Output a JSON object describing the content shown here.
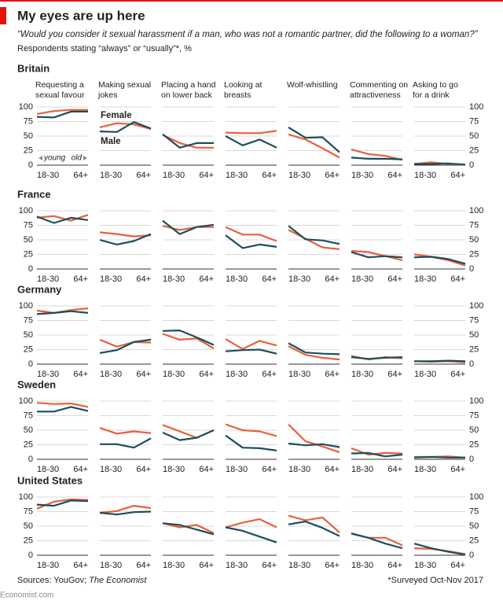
{
  "header": {
    "title": "My eyes are up here",
    "subtitle": "“Would you consider it sexual harassment if a man, who was not a romantic partner, did the following to a woman?”",
    "note": "Respondents stating “always” or “usually”*, %"
  },
  "chart_data": {
    "type": "line",
    "questions": [
      "Requesting a sexual favour",
      "Making sexual jokes",
      "Placing a hand on lower back",
      "Looking at breasts",
      "Wolf-whistling",
      "Commenting on attractiveness",
      "Asking to go for a drink"
    ],
    "categories": [
      "18-30",
      null,
      null,
      "64+"
    ],
    "ylim": [
      0,
      100
    ],
    "yticks": [
      0,
      25,
      50,
      75,
      100
    ],
    "grid": true,
    "series": [
      {
        "name": "Female",
        "color": "#e8603c"
      },
      {
        "name": "Male",
        "color": "#1b4f5e"
      }
    ],
    "annotations": [
      "young",
      "old"
    ],
    "countries": [
      {
        "name": "Britain",
        "values": [
          [
            [
              88,
              93,
              95,
              95
            ],
            [
              83,
              82,
              92,
              92
            ]
          ],
          [
            [
              65,
              72,
              70,
              62
            ],
            [
              58,
              57,
              74,
              63
            ]
          ],
          [
            [
              52,
              38,
              30,
              30
            ],
            [
              53,
              30,
              38,
              38
            ]
          ],
          [
            [
              56,
              55,
              55,
              59
            ],
            [
              50,
              34,
              44,
              30
            ]
          ],
          [
            [
              53,
              44,
              29,
              13
            ],
            [
              65,
              47,
              48,
              22
            ]
          ],
          [
            [
              27,
              19,
              16,
              9
            ],
            [
              13,
              11,
              11,
              10
            ]
          ],
          [
            [
              2,
              5,
              2,
              1
            ],
            [
              2,
              2,
              3,
              1
            ]
          ]
        ]
      },
      {
        "name": "France",
        "values": [
          [
            [
              88,
              91,
              83,
              93
            ],
            [
              90,
              79,
              88,
              84
            ]
          ],
          [
            [
              63,
              60,
              56,
              58
            ],
            [
              50,
              42,
              48,
              60
            ]
          ],
          [
            [
              74,
              67,
              72,
              72
            ],
            [
              83,
              60,
              72,
              76
            ]
          ],
          [
            [
              72,
              59,
              59,
              48
            ],
            [
              58,
              36,
              42,
              38
            ]
          ],
          [
            [
              67,
              52,
              37,
              34
            ],
            [
              74,
              51,
              49,
              43
            ]
          ],
          [
            [
              31,
              29,
              22,
              15
            ],
            [
              29,
              20,
              22,
              20
            ]
          ],
          [
            [
              25,
              21,
              15,
              6
            ],
            [
              20,
              21,
              17,
              9
            ]
          ]
        ]
      },
      {
        "name": "Germany",
        "values": [
          [
            [
              92,
              88,
              93,
              96
            ],
            [
              86,
              88,
              91,
              88
            ]
          ],
          [
            [
              42,
              30,
              38,
              37
            ],
            [
              19,
              24,
              38,
              42
            ]
          ],
          [
            [
              52,
              42,
              44,
              27
            ],
            [
              57,
              58,
              46,
              33
            ]
          ],
          [
            [
              43,
              26,
              40,
              32
            ],
            [
              22,
              24,
              25,
              18
            ]
          ],
          [
            [
              31,
              16,
              11,
              8
            ],
            [
              36,
              20,
              18,
              17
            ]
          ],
          [
            [
              14,
              8,
              12,
              10
            ],
            [
              12,
              9,
              11,
              12
            ]
          ],
          [
            [
              5,
              4,
              5,
              3
            ],
            [
              5,
              5,
              6,
              5
            ]
          ]
        ]
      },
      {
        "name": "Sweden",
        "values": [
          [
            [
              97,
              95,
              96,
              90
            ],
            [
              82,
              82,
              90,
              83
            ]
          ],
          [
            [
              54,
              44,
              48,
              45
            ],
            [
              26,
              26,
              20,
              36
            ]
          ],
          [
            [
              59,
              48,
              37,
              50
            ],
            [
              46,
              33,
              37,
              50
            ]
          ],
          [
            [
              60,
              50,
              48,
              40
            ],
            [
              41,
              20,
              19,
              15
            ]
          ],
          [
            [
              60,
              31,
              22,
              12
            ],
            [
              27,
              24,
              26,
              21
            ]
          ],
          [
            [
              19,
              8,
              11,
              10
            ],
            [
              10,
              11,
              5,
              8
            ]
          ],
          [
            [
              4,
              4,
              5,
              3
            ],
            [
              3,
              4,
              3,
              3
            ]
          ]
        ]
      },
      {
        "name": "United States",
        "values": [
          [
            [
              80,
              92,
              96,
              95
            ],
            [
              87,
              85,
              94,
              93
            ]
          ],
          [
            [
              73,
              76,
              85,
              81
            ],
            [
              73,
              70,
              74,
              75
            ]
          ],
          [
            [
              55,
              48,
              52,
              38
            ],
            [
              55,
              52,
              44,
              36
            ]
          ],
          [
            [
              48,
              56,
              62,
              48
            ],
            [
              48,
              42,
              32,
              22
            ]
          ],
          [
            [
              68,
              60,
              65,
              39
            ],
            [
              53,
              58,
              47,
              33
            ]
          ],
          [
            [
              38,
              30,
              30,
              17
            ],
            [
              37,
              30,
              20,
              12
            ]
          ],
          [
            [
              12,
              11,
              7,
              2
            ],
            [
              20,
              12,
              6,
              1
            ]
          ]
        ]
      }
    ]
  },
  "footer": {
    "source": "Sources: YouGov; ",
    "source_italic": "The Economist",
    "note": "*Surveyed Oct-Nov 2017",
    "site": "Economist.com"
  }
}
